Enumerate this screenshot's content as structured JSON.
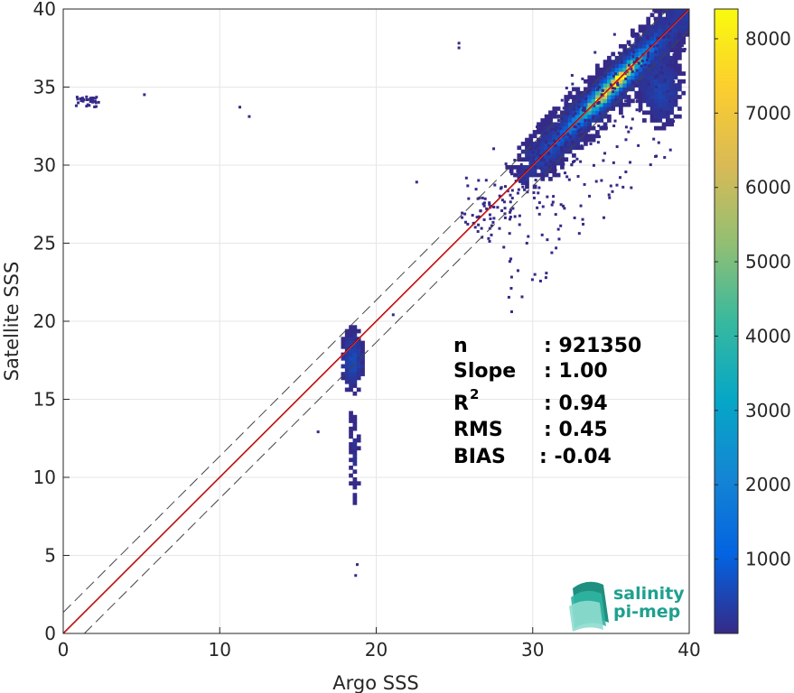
{
  "chart_data": {
    "type": "heatmap",
    "title": "",
    "xlabel": "Argo SSS",
    "ylabel": "Satellite SSS",
    "xlim": [
      0,
      40
    ],
    "ylim": [
      0,
      40
    ],
    "xticks": [
      0,
      10,
      20,
      30,
      40
    ],
    "yticks": [
      0,
      5,
      10,
      15,
      20,
      25,
      30,
      35,
      40
    ],
    "grid": true,
    "colormap": "parula",
    "colorbar": {
      "min": 0,
      "max": 8400,
      "ticks": [
        1000,
        2000,
        3000,
        4000,
        5000,
        6000,
        7000,
        8000
      ]
    },
    "reference_lines": {
      "identity": {
        "slope": 1,
        "intercept": 0,
        "color": "#8b0000"
      },
      "fit": {
        "slope": 1.0,
        "intercept": -0.04,
        "color": "#ff3b3b"
      },
      "envelope_offset": 1.35
    },
    "density_clusters": [
      {
        "center": [
          35.2,
          35.0
        ],
        "peak_count": 8400
      },
      {
        "center": [
          33.0,
          32.5
        ],
        "peak_count": 900
      },
      {
        "center": [
          18.5,
          17.5
        ],
        "peak_count": 600
      },
      {
        "center": [
          18.7,
          10.0
        ],
        "peak_count": 150
      },
      {
        "center": [
          37.5,
          33.5
        ],
        "peak_count": 500
      },
      {
        "center": [
          1.5,
          34.0
        ],
        "peak_count": 80
      }
    ],
    "stats": [
      {
        "label": "n",
        "value": ": 921350",
        "sup": ""
      },
      {
        "label": "Slope",
        "value": ": 1.00",
        "sup": ""
      },
      {
        "label": "R",
        "value": ": 0.94",
        "sup": "2"
      },
      {
        "label": "RMS",
        "value": ": 0.45",
        "sup": ""
      },
      {
        "label": "BIAS",
        "value": ": -0.04",
        "sup": ""
      }
    ]
  },
  "logo": {
    "line1": "salinity",
    "line2": "pi-mep"
  },
  "colors": {
    "parula": [
      "#352a87",
      "#0363e1",
      "#1485d4",
      "#06a7c6",
      "#38b99e",
      "#92bf73",
      "#d9ba56",
      "#fcce2e",
      "#f9fb0e"
    ],
    "grid": "#e6e6e6",
    "axis": "#262626",
    "envelope": "#444444",
    "logo": "#1fa08e"
  }
}
